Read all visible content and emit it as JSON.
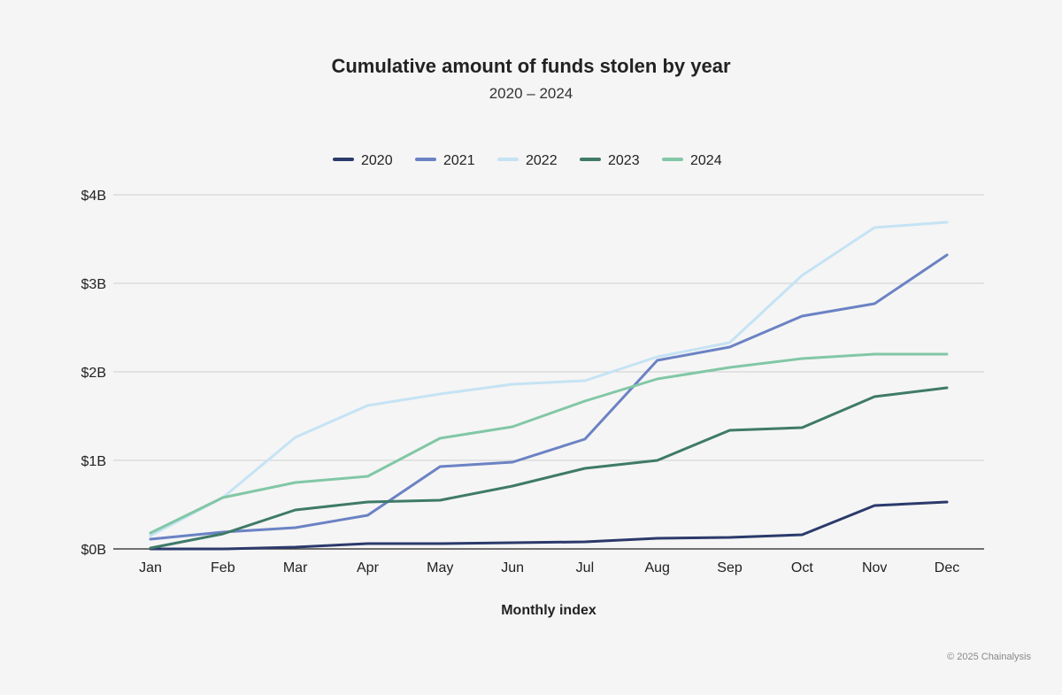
{
  "chart_data": {
    "type": "line",
    "title": "Cumulative amount of funds stolen by year",
    "subtitle": "2020 – 2024",
    "xlabel": "Monthly index",
    "ylabel": "",
    "categories": [
      "Jan",
      "Feb",
      "Mar",
      "Apr",
      "May",
      "Jun",
      "Jul",
      "Aug",
      "Sep",
      "Oct",
      "Nov",
      "Dec"
    ],
    "ylim": [
      0,
      4
    ],
    "yticks": [
      0,
      1,
      2,
      3,
      4
    ],
    "ytick_labels": [
      "$0B",
      "$1B",
      "$2B",
      "$3B",
      "$4B"
    ],
    "grid": true,
    "legend_position": "top-center",
    "series": [
      {
        "name": "2020",
        "color": "#2b3a6b",
        "values": [
          0.0,
          0.0,
          0.02,
          0.06,
          0.06,
          0.07,
          0.08,
          0.12,
          0.13,
          0.16,
          0.49,
          0.53
        ]
      },
      {
        "name": "2021",
        "color": "#6b82c4",
        "values": [
          0.11,
          0.19,
          0.24,
          0.38,
          0.93,
          0.98,
          1.24,
          2.13,
          2.28,
          2.63,
          2.77,
          3.32
        ]
      },
      {
        "name": "2022",
        "color": "#c5e3f4",
        "values": [
          0.15,
          0.58,
          1.26,
          1.62,
          1.75,
          1.86,
          1.9,
          2.17,
          2.33,
          3.09,
          3.63,
          3.69
        ]
      },
      {
        "name": "2023",
        "color": "#3f7a68",
        "values": [
          0.01,
          0.17,
          0.44,
          0.53,
          0.55,
          0.71,
          0.91,
          1.0,
          1.34,
          1.37,
          1.72,
          1.82
        ]
      },
      {
        "name": "2024",
        "color": "#82c7a6",
        "values": [
          0.18,
          0.58,
          0.75,
          0.82,
          1.25,
          1.38,
          1.67,
          1.92,
          2.05,
          2.15,
          2.2,
          2.2
        ]
      }
    ]
  },
  "footer": {
    "credit": "© 2025 Chainalysis"
  }
}
